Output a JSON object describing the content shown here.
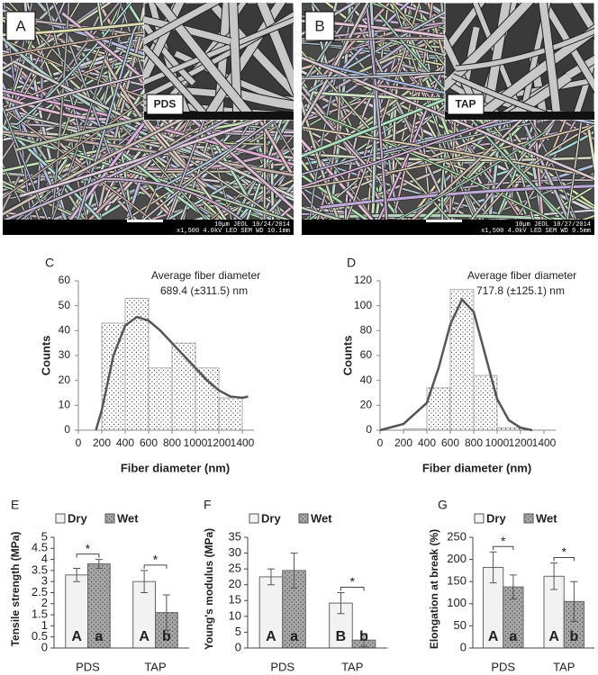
{
  "images": [
    {
      "panel": "A",
      "label": "PDS",
      "info": [
        "10µm  JEOL  10/24/2014",
        "x1,500   4.0kV  LED   SEM   WD 10.1mm"
      ]
    },
    {
      "panel": "B",
      "label": "TAP",
      "info": [
        "10µm  JEOL  10/27/2014",
        "x1,500   4.0kV  LED   SEM   WD 9.5mm"
      ]
    }
  ],
  "chart_data": [
    {
      "type": "histogram",
      "panel": "C",
      "annotation": [
        "Average fiber diameter",
        "689.4 (±311.5) nm"
      ],
      "xlabel": "Fiber diameter (nm)",
      "ylabel": "Counts",
      "bins": [
        200,
        400,
        600,
        800,
        1000,
        1200,
        1400
      ],
      "values": [
        43,
        53,
        25,
        35,
        25,
        13
      ],
      "color": "#ffffff",
      "fit": {
        "color": "#555555",
        "x": [
          150,
          200,
          300,
          400,
          500,
          600,
          700,
          800,
          900,
          1000,
          1100,
          1200,
          1300,
          1400,
          1450
        ],
        "y": [
          0,
          8,
          30,
          42,
          45.5,
          44,
          40,
          35,
          30,
          25,
          20,
          16,
          13.5,
          13,
          13.5
        ]
      },
      "xlim": [
        0,
        1500
      ],
      "xticks": [
        0,
        200,
        400,
        600,
        800,
        1000,
        1200,
        1400
      ],
      "ylim": [
        0,
        60
      ],
      "yticks": [
        0,
        10,
        20,
        30,
        40,
        50,
        60
      ]
    },
    {
      "type": "histogram",
      "panel": "D",
      "annotation": [
        "Average fiber diameter",
        "717.8 (±125.1) nm"
      ],
      "xlabel": "Fiber diameter (nm)",
      "ylabel": "Counts",
      "bins": [
        200,
        400,
        600,
        800,
        1000,
        1200
      ],
      "values": [
        1,
        34,
        113,
        44,
        2
      ],
      "color": "#ffffff",
      "fit": {
        "color": "#555555",
        "x": [
          0,
          200,
          400,
          500,
          600,
          700,
          800,
          900,
          1000,
          1100,
          1200,
          1300
        ],
        "y": [
          0,
          5,
          22,
          50,
          85,
          105,
          95,
          60,
          25,
          8,
          2,
          0
        ]
      },
      "xlim": [
        0,
        1500
      ],
      "xticks": [
        0,
        200,
        400,
        600,
        800,
        1000,
        1200,
        1400
      ],
      "ylim": [
        0,
        120
      ],
      "yticks": [
        0,
        20,
        40,
        60,
        80,
        100,
        120
      ]
    },
    {
      "type": "bar",
      "panel": "E",
      "ylabel": "Tensile strength (MPa)",
      "categories": [
        "PDS",
        "TAP"
      ],
      "series": [
        {
          "name": "Dry",
          "color": "#f2f2f2",
          "values": [
            3.3,
            3.0
          ],
          "errors": [
            0.3,
            0.5
          ],
          "letters": [
            "A",
            "A"
          ]
        },
        {
          "name": "Wet",
          "color": "#a6a6a6",
          "values": [
            3.8,
            1.6
          ],
          "errors": [
            0.2,
            0.8
          ],
          "letters": [
            "a",
            "b"
          ]
        }
      ],
      "significance": [
        "*",
        "*"
      ],
      "ylim": [
        0,
        5
      ],
      "yticks": [
        0,
        0.5,
        1,
        1.5,
        2,
        2.5,
        3,
        3.5,
        4,
        4.5,
        5
      ]
    },
    {
      "type": "bar",
      "panel": "F",
      "ylabel": "Young's modulus (MPa)",
      "categories": [
        "PDS",
        "TAP"
      ],
      "series": [
        {
          "name": "Dry",
          "color": "#f2f2f2",
          "values": [
            22.5,
            14.2
          ],
          "errors": [
            2.5,
            3.3
          ],
          "letters": [
            "A",
            "B"
          ]
        },
        {
          "name": "Wet",
          "color": "#a6a6a6",
          "values": [
            24.5,
            2.5
          ],
          "errors": [
            5.5,
            2
          ],
          "letters": [
            "a",
            "b"
          ]
        }
      ],
      "significance": [
        null,
        "*"
      ],
      "ylim": [
        0,
        35
      ],
      "yticks": [
        0,
        5,
        10,
        15,
        20,
        25,
        30,
        35
      ]
    },
    {
      "type": "bar",
      "panel": "G",
      "ylabel": "Elongation at break (%)",
      "categories": [
        "PDS",
        "TAP"
      ],
      "series": [
        {
          "name": "Dry",
          "color": "#f2f2f2",
          "values": [
            182,
            162
          ],
          "errors": [
            35,
            30
          ],
          "letters": [
            "A",
            "A"
          ]
        },
        {
          "name": "Wet",
          "color": "#a6a6a6",
          "values": [
            138,
            105
          ],
          "errors": [
            27,
            45
          ],
          "letters": [
            "a",
            "b"
          ]
        }
      ],
      "significance": [
        "*",
        "*"
      ],
      "ylim": [
        0,
        250
      ],
      "yticks": [
        0,
        50,
        100,
        150,
        200,
        250
      ]
    }
  ]
}
